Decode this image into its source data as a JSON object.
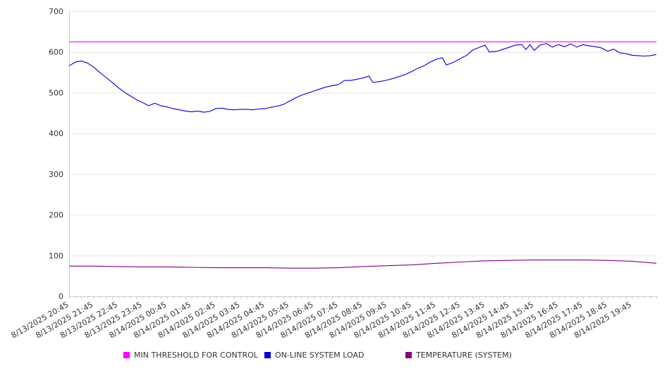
{
  "chart_data": {
    "type": "line",
    "ylim": [
      0,
      700
    ],
    "yticks": [
      0,
      100,
      200,
      300,
      400,
      500,
      600,
      700
    ],
    "x_tick_labels": [
      "8/13/2025 20:45",
      "8/13/2025 21:45",
      "8/13/2025 22:45",
      "8/13/2025 23:45",
      "8/14/2025 00:45",
      "8/14/2025 01:45",
      "8/14/2025 02:45",
      "8/14/2025 03:45",
      "8/14/2025 04:45",
      "8/14/2025 05:45",
      "8/14/2025 06:45",
      "8/14/2025 07:45",
      "8/14/2025 08:45",
      "8/14/2025 09:45",
      "8/14/2025 10:45",
      "8/14/2025 11:45",
      "8/14/2025 12:45",
      "8/14/2025 13:45",
      "8/14/2025 14:45",
      "8/14/2025 15:45",
      "8/14/2025 16:45",
      "8/14/2025 17:45",
      "8/14/2025 18:45",
      "8/14/2025 19:45"
    ],
    "x_range": [
      "8/13/2025 20:45",
      "8/14/2025 20:45"
    ],
    "grid": true,
    "legend_position": "bottom",
    "series": [
      {
        "name": "MIN THRESHOLD FOR CONTROL",
        "color": "#ff00ff",
        "points": [
          [
            "8/13/2025 20:45",
            625
          ],
          [
            "8/14/2025 20:45",
            625
          ]
        ]
      },
      {
        "name": "ON-LINE SYSTEM LOAD",
        "color": "#0000cc",
        "points": [
          [
            "8/13/2025 20:45",
            566
          ],
          [
            "8/13/2025 21:00",
            575
          ],
          [
            "8/13/2025 21:15",
            578
          ],
          [
            "8/13/2025 21:30",
            573
          ],
          [
            "8/13/2025 21:45",
            563
          ],
          [
            "8/13/2025 22:00",
            550
          ],
          [
            "8/13/2025 22:15",
            538
          ],
          [
            "8/13/2025 22:30",
            526
          ],
          [
            "8/13/2025 22:45",
            513
          ],
          [
            "8/13/2025 23:00",
            502
          ],
          [
            "8/13/2025 23:15",
            492
          ],
          [
            "8/13/2025 23:30",
            483
          ],
          [
            "8/13/2025 23:45",
            476
          ],
          [
            "8/14/2025 00:00",
            468
          ],
          [
            "8/14/2025 00:15",
            474
          ],
          [
            "8/14/2025 00:30",
            468
          ],
          [
            "8/14/2025 00:45",
            465
          ],
          [
            "8/14/2025 01:00",
            461
          ],
          [
            "8/14/2025 01:15",
            458
          ],
          [
            "8/14/2025 01:30",
            455
          ],
          [
            "8/14/2025 01:45",
            453
          ],
          [
            "8/14/2025 02:00",
            455
          ],
          [
            "8/14/2025 02:15",
            452
          ],
          [
            "8/14/2025 02:30",
            454
          ],
          [
            "8/14/2025 02:45",
            461
          ],
          [
            "8/14/2025 03:00",
            462
          ],
          [
            "8/14/2025 03:15",
            459
          ],
          [
            "8/14/2025 03:30",
            458
          ],
          [
            "8/14/2025 03:45",
            459
          ],
          [
            "8/14/2025 04:00",
            459
          ],
          [
            "8/14/2025 04:15",
            458
          ],
          [
            "8/14/2025 04:30",
            460
          ],
          [
            "8/14/2025 04:45",
            461
          ],
          [
            "8/14/2025 05:00",
            464
          ],
          [
            "8/14/2025 05:15",
            467
          ],
          [
            "8/14/2025 05:30",
            471
          ],
          [
            "8/14/2025 05:45",
            479
          ],
          [
            "8/14/2025 06:00",
            487
          ],
          [
            "8/14/2025 06:15",
            494
          ],
          [
            "8/14/2025 06:30",
            499
          ],
          [
            "8/14/2025 06:45",
            504
          ],
          [
            "8/14/2025 07:00",
            509
          ],
          [
            "8/14/2025 07:15",
            514
          ],
          [
            "8/14/2025 07:30",
            517
          ],
          [
            "8/14/2025 07:45",
            520
          ],
          [
            "8/14/2025 08:00",
            530
          ],
          [
            "8/14/2025 08:15",
            530
          ],
          [
            "8/14/2025 08:30",
            533
          ],
          [
            "8/14/2025 08:45",
            536
          ],
          [
            "8/14/2025 09:00",
            541
          ],
          [
            "8/14/2025 09:10",
            525
          ],
          [
            "8/14/2025 09:30",
            528
          ],
          [
            "8/14/2025 09:45",
            531
          ],
          [
            "8/14/2025 10:00",
            535
          ],
          [
            "8/14/2025 10:15",
            540
          ],
          [
            "8/14/2025 10:30",
            545
          ],
          [
            "8/14/2025 10:45",
            552
          ],
          [
            "8/14/2025 11:00",
            560
          ],
          [
            "8/14/2025 11:15",
            566
          ],
          [
            "8/14/2025 11:30",
            575
          ],
          [
            "8/14/2025 11:45",
            582
          ],
          [
            "8/14/2025 12:00",
            586
          ],
          [
            "8/14/2025 12:10",
            568
          ],
          [
            "8/14/2025 12:30",
            576
          ],
          [
            "8/14/2025 12:45",
            584
          ],
          [
            "8/14/2025 13:00",
            592
          ],
          [
            "8/14/2025 13:15",
            605
          ],
          [
            "8/14/2025 13:30",
            611
          ],
          [
            "8/14/2025 13:45",
            617
          ],
          [
            "8/14/2025 13:55",
            600
          ],
          [
            "8/14/2025 14:15",
            602
          ],
          [
            "8/14/2025 14:30",
            607
          ],
          [
            "8/14/2025 14:45",
            612
          ],
          [
            "8/14/2025 15:00",
            617
          ],
          [
            "8/14/2025 15:15",
            618
          ],
          [
            "8/14/2025 15:25",
            606
          ],
          [
            "8/14/2025 15:35",
            618
          ],
          [
            "8/14/2025 15:45",
            604
          ],
          [
            "8/14/2025 16:00",
            617
          ],
          [
            "8/14/2025 16:15",
            621
          ],
          [
            "8/14/2025 16:30",
            612
          ],
          [
            "8/14/2025 16:45",
            618
          ],
          [
            "8/14/2025 17:00",
            613
          ],
          [
            "8/14/2025 17:15",
            620
          ],
          [
            "8/14/2025 17:30",
            612
          ],
          [
            "8/14/2025 17:45",
            618
          ],
          [
            "8/14/2025 18:00",
            615
          ],
          [
            "8/14/2025 18:15",
            613
          ],
          [
            "8/14/2025 18:30",
            610
          ],
          [
            "8/14/2025 18:45",
            602
          ],
          [
            "8/14/2025 19:00",
            607
          ],
          [
            "8/14/2025 19:15",
            598
          ],
          [
            "8/14/2025 19:30",
            596
          ],
          [
            "8/14/2025 19:45",
            592
          ],
          [
            "8/14/2025 20:00",
            591
          ],
          [
            "8/14/2025 20:15",
            590
          ],
          [
            "8/14/2025 20:30",
            591
          ],
          [
            "8/14/2025 20:45",
            594
          ]
        ]
      },
      {
        "name": "TEMPERATURE (SYSTEM)",
        "color": "#800080",
        "points": [
          [
            "8/13/2025 20:45",
            74
          ],
          [
            "8/13/2025 21:45",
            74
          ],
          [
            "8/13/2025 22:45",
            73
          ],
          [
            "8/13/2025 23:45",
            72
          ],
          [
            "8/14/2025 00:45",
            72
          ],
          [
            "8/14/2025 01:45",
            71
          ],
          [
            "8/14/2025 02:45",
            70
          ],
          [
            "8/14/2025 03:45",
            70
          ],
          [
            "8/14/2025 04:45",
            70
          ],
          [
            "8/14/2025 05:45",
            69
          ],
          [
            "8/14/2025 06:45",
            69
          ],
          [
            "8/14/2025 07:45",
            70
          ],
          [
            "8/14/2025 08:45",
            73
          ],
          [
            "8/14/2025 09:45",
            75
          ],
          [
            "8/14/2025 10:45",
            77
          ],
          [
            "8/14/2025 11:45",
            81
          ],
          [
            "8/14/2025 12:45",
            84
          ],
          [
            "8/14/2025 13:45",
            87
          ],
          [
            "8/14/2025 14:45",
            88
          ],
          [
            "8/14/2025 15:45",
            89
          ],
          [
            "8/14/2025 16:45",
            89
          ],
          [
            "8/14/2025 17:45",
            89
          ],
          [
            "8/14/2025 18:45",
            88
          ],
          [
            "8/14/2025 19:45",
            86
          ],
          [
            "8/14/2025 20:45",
            81
          ]
        ]
      }
    ]
  },
  "colors": {
    "grid": "#e6e6e6",
    "axis": "#cccccc",
    "text": "#333333"
  }
}
